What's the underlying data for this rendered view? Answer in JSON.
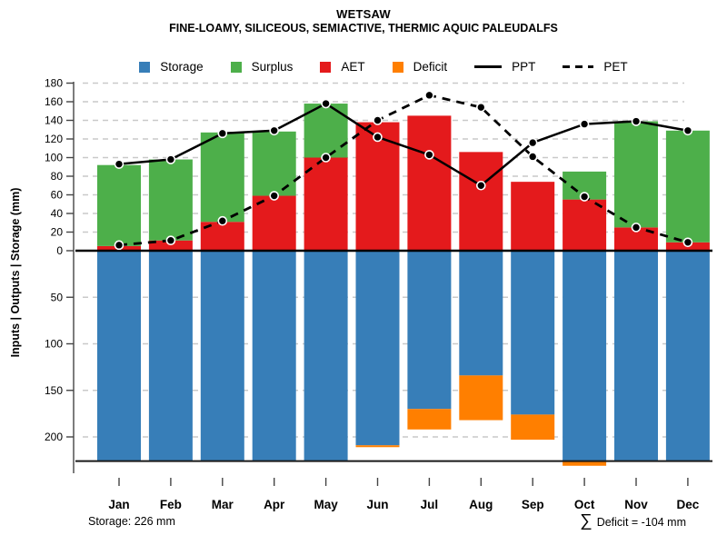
{
  "header": {
    "title": "WETSAW",
    "subtitle": "FINE-LOAMY, SILICEOUS, SEMIACTIVE, THERMIC AQUIC PALEUDALFS"
  },
  "legend": {
    "items": [
      {
        "label": "Storage",
        "swatch": "square",
        "color": "#377eb8"
      },
      {
        "label": "Surplus",
        "swatch": "square",
        "color": "#4daf4a"
      },
      {
        "label": "AET",
        "swatch": "square",
        "color": "#e41a1c"
      },
      {
        "label": "Deficit",
        "swatch": "square",
        "color": "#ff7f00"
      },
      {
        "label": "PPT",
        "swatch": "line-solid",
        "color": "#000000"
      },
      {
        "label": "PET",
        "swatch": "line-dashed",
        "color": "#000000"
      }
    ]
  },
  "colors": {
    "storage_blue": "#377eb8",
    "surplus_green": "#4daf4a",
    "aet_red": "#e41a1c",
    "deficit_orange": "#ff7f00",
    "line_black": "#000000",
    "grid_gray": "#c9c9c9"
  },
  "chart_data": {
    "type": "bar",
    "subtype": "stacked-diverging-bars-with-line-overlay",
    "title": "WETSAW",
    "subtitle": "FINE-LOAMY, SILICEOUS, SEMIACTIVE, THERMIC AQUIC PALEUDALFS",
    "ylabel": "Inputs | Outputs | Storage   (mm)",
    "categories": [
      "Jan",
      "Feb",
      "Mar",
      "Apr",
      "May",
      "Jun",
      "Jul",
      "Aug",
      "Sep",
      "Oct",
      "Nov",
      "Dec"
    ],
    "series": [
      {
        "name": "AET",
        "type": "bar",
        "direction": "up",
        "stack": "above-zero",
        "color": "#e41a1c",
        "values": [
          5,
          11,
          31,
          59,
          100,
          138,
          145,
          106,
          74,
          55,
          25,
          9
        ]
      },
      {
        "name": "Surplus",
        "type": "bar",
        "direction": "up",
        "stack": "above-zero",
        "color": "#4daf4a",
        "values": [
          87,
          87,
          96,
          69,
          58,
          0,
          0,
          0,
          0,
          30,
          114,
          120
        ]
      },
      {
        "name": "Storage",
        "type": "bar",
        "direction": "down",
        "stack": "below-zero",
        "color": "#377eb8",
        "values": [
          226,
          226,
          226,
          226,
          226,
          209,
          170,
          134,
          176,
          226,
          226,
          226
        ]
      },
      {
        "name": "Deficit",
        "type": "bar",
        "direction": "down",
        "stack": "below-zero",
        "color": "#ff7f00",
        "values": [
          0,
          0,
          0,
          0,
          0,
          2,
          22,
          48,
          27,
          5,
          0,
          0
        ]
      },
      {
        "name": "PPT",
        "type": "line",
        "style": "solid",
        "color": "#000000",
        "values": [
          93,
          98,
          126,
          129,
          158,
          122,
          103,
          70,
          116,
          136,
          139,
          129
        ]
      },
      {
        "name": "PET",
        "type": "line",
        "style": "dashed",
        "color": "#000000",
        "values": [
          6,
          11,
          32,
          59,
          100,
          140,
          167,
          154,
          101,
          58,
          25,
          9
        ]
      }
    ],
    "y_axis_upper": {
      "ticks": [
        0,
        20,
        40,
        60,
        80,
        100,
        120,
        140,
        160,
        180
      ],
      "range_mm": [
        0,
        182
      ]
    },
    "y_axis_lower": {
      "ticks": [
        50,
        100,
        150,
        200
      ],
      "range_mm": [
        0,
        233
      ],
      "reference_line_mm": 226
    },
    "grid": true,
    "legend_position": "top",
    "annotations": {
      "storage_total": "Storage: 226 mm",
      "deficit_sigma": "∑",
      "deficit_label": "Deficit = -104 mm"
    }
  }
}
